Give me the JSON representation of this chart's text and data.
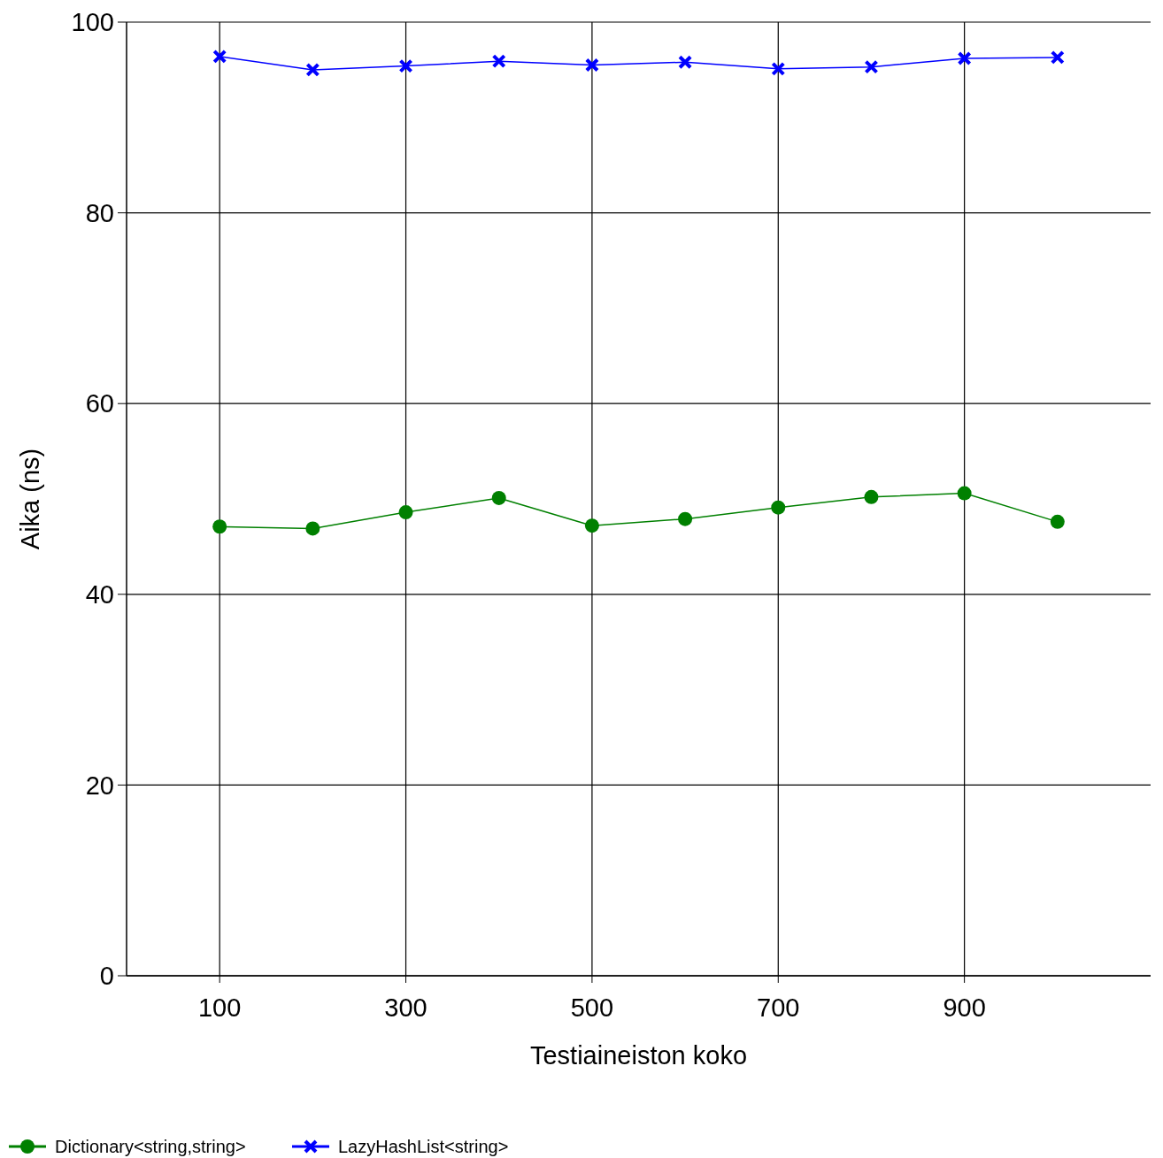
{
  "chart_data": {
    "type": "line",
    "xlabel": "Testiaineiston koko",
    "ylabel": "Aika (ns)",
    "x": [
      100,
      200,
      300,
      400,
      500,
      600,
      700,
      800,
      900,
      1000
    ],
    "series": [
      {
        "name": "Dictionary<string,string>",
        "color": "#008000",
        "marker": "circle",
        "values": [
          47.1,
          46.9,
          48.6,
          50.1,
          47.2,
          47.9,
          49.1,
          50.2,
          50.6,
          47.6
        ]
      },
      {
        "name": "LazyHashList<string>",
        "color": "#0000ff",
        "marker": "cross",
        "values": [
          96.4,
          95.0,
          95.4,
          95.9,
          95.5,
          95.8,
          95.1,
          95.3,
          96.2,
          96.3
        ]
      }
    ],
    "xlim": [
      0,
      1100
    ],
    "xticks": [
      100,
      300,
      500,
      700,
      900
    ],
    "ylim": [
      0,
      100
    ],
    "yticks": [
      0,
      20,
      40,
      60,
      80,
      100
    ],
    "grid": true,
    "legend": "bottom left",
    "line_style": "solid"
  }
}
